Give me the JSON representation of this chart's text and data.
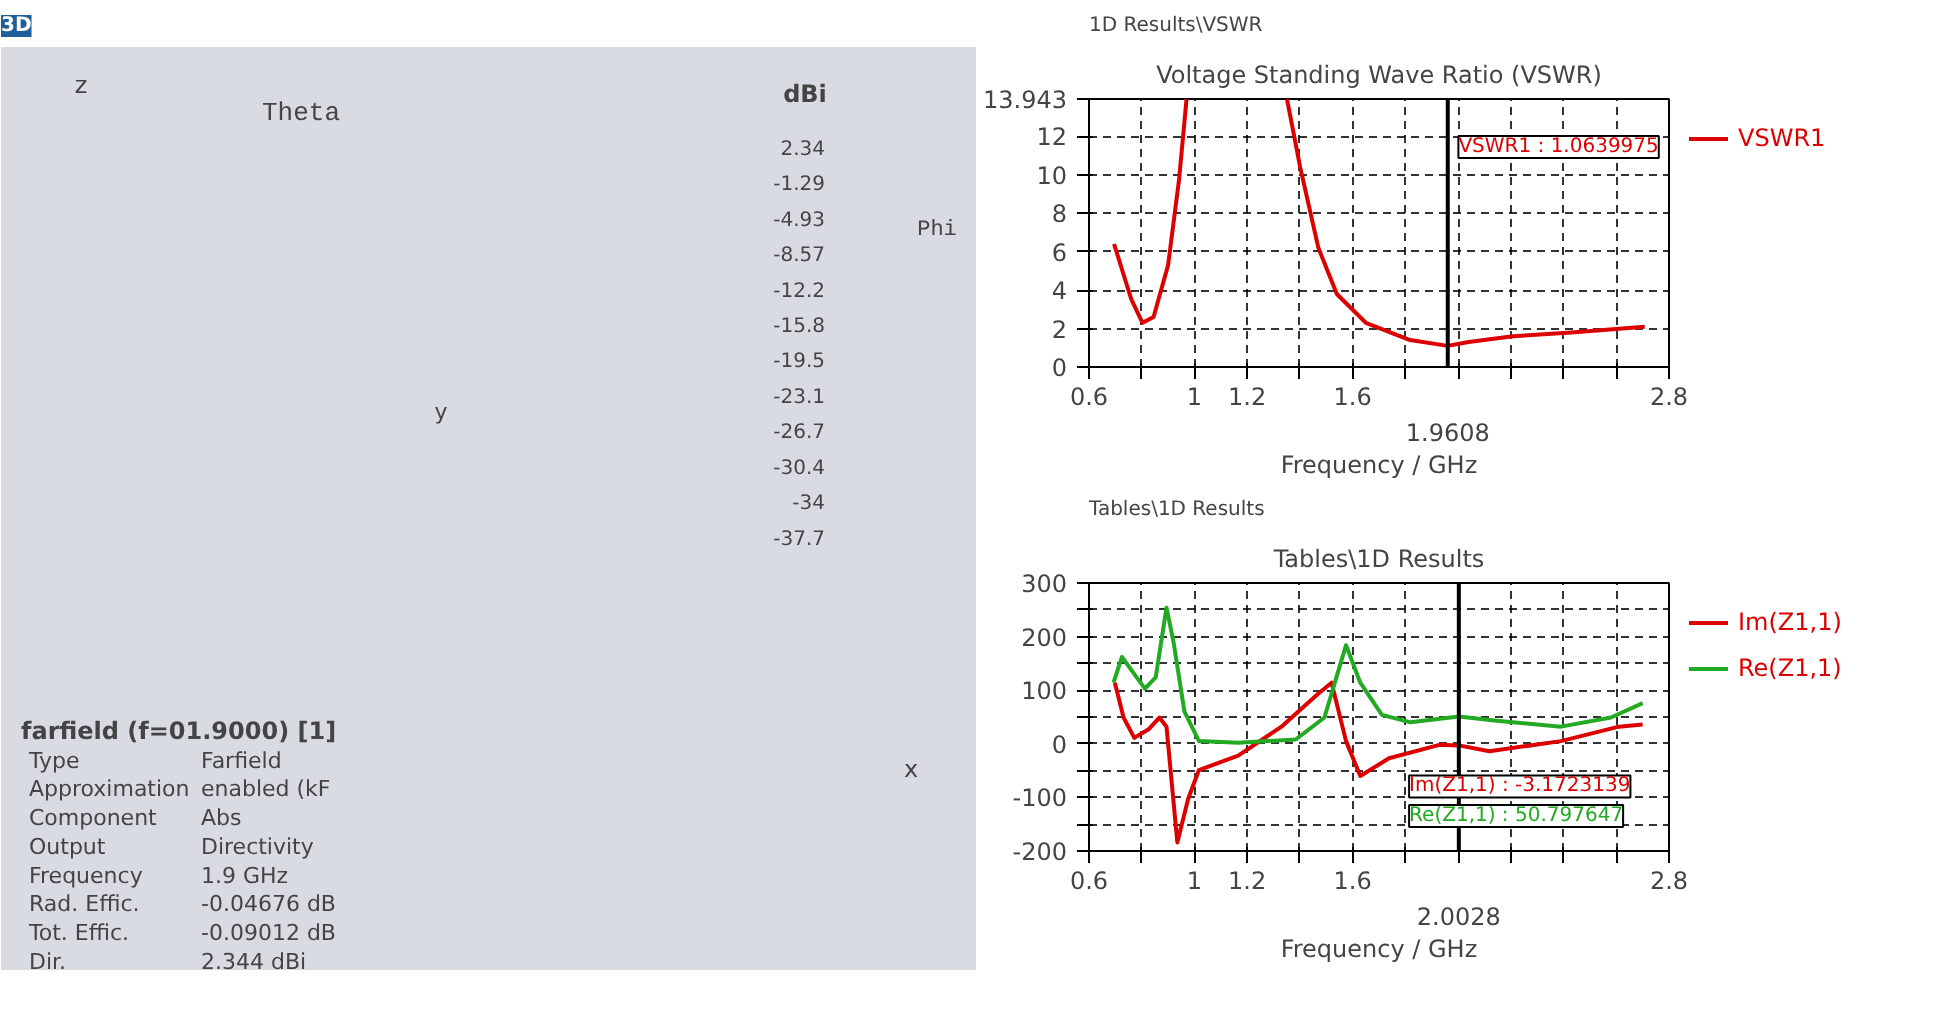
{
  "chart_data": [
    {
      "type": "other",
      "title": "3D",
      "clabel": "dBi",
      "annotations": [
        "Theta",
        "Phi",
        "z",
        "y",
        "x",
        "2.34",
        "-1.29",
        "-4.93",
        "-8.57",
        "-12.2",
        "-15.8",
        "-19.5",
        "-23.1",
        "-26.7",
        "-30.4",
        "-34",
        "-37.7",
        "farfield (f=01.9000) [1]",
        "Type",
        "Farfield",
        "Approximation",
        "enabled (kF",
        "Component",
        "Abs",
        "Output",
        "Directivity",
        "Frequency",
        "1.9 GHz",
        "Rad. Effic.",
        "-0.04676 dB",
        "Tot. Effic.",
        "-0.09012 dB",
        "Dir.",
        "2.344 dBi"
      ]
    },
    {
      "type": "line",
      "subtitle": "1D Results\\VSWR",
      "title": "Voltage Standing Wave Ratio (VSWR)",
      "xlabel": "Frequency / GHz",
      "xlim": [
        0.6,
        2.8
      ],
      "xticks": [
        0.6,
        {
          "value": 0.8,
          "label": null
        },
        1,
        1.2,
        {
          "value": 1.4,
          "label": null
        },
        1.6,
        {
          "value": 1.8,
          "label": null
        },
        {
          "value": 2,
          "label": null
        },
        {
          "value": 2.2,
          "label": null
        },
        {
          "value": 2.4,
          "label": null
        },
        {
          "value": 2.6,
          "label": null
        },
        2.8
      ],
      "ylim": [
        0,
        13.943
      ],
      "yticks": [
        0,
        2,
        4,
        6,
        8,
        10,
        12,
        13.943
      ],
      "grid": true,
      "legend": "right",
      "marker": "none",
      "line_style": "solid",
      "x": [
        0.695,
        0.761,
        0.803,
        0.845,
        0.9,
        0.942,
        0.97,
        1.2,
        1.351,
        1.401,
        1.47,
        1.54,
        1.65,
        1.818,
        1.9608,
        2.04,
        2.208,
        2.43,
        2.708
      ],
      "series": [
        {
          "name": "VSWR1",
          "color": "#dd0000",
          "values": [
            6.4,
            3.5,
            2.3,
            2.6,
            5.3,
            9.8,
            13.943,
            null,
            13.943,
            10.4,
            6.2,
            3.8,
            2.3,
            1.4,
            1.1,
            1.3,
            1.6,
            1.8,
            2.1
          ]
        }
      ],
      "ref_lines": [
        {
          "axis": "x",
          "value": 1.9608,
          "label": "1.9608",
          "color": "#000000"
        }
      ],
      "annotations": [
        "VSWR1 : 1.0639975"
      ]
    },
    {
      "type": "line",
      "subtitle": "Tables\\1D Results",
      "title": "Tables\\1D Results",
      "xlabel": "Frequency / GHz",
      "xlim": [
        0.6,
        2.8
      ],
      "xticks": [
        0.6,
        {
          "value": 0.8,
          "label": null
        },
        1,
        1.2,
        {
          "value": 1.4,
          "label": null
        },
        1.6,
        {
          "value": 1.8,
          "label": null
        },
        {
          "value": 2,
          "label": null
        },
        {
          "value": 2.2,
          "label": null
        },
        {
          "value": 2.4,
          "label": null
        },
        {
          "value": 2.6,
          "label": null
        },
        2.8
      ],
      "ylim": [
        -200,
        300
      ],
      "yticks": [
        -200,
        {
          "value": -150,
          "label": null
        },
        -100,
        {
          "value": -50,
          "label": null
        },
        0,
        {
          "value": 50,
          "label": null
        },
        100,
        {
          "value": 150,
          "label": null
        },
        200,
        {
          "value": 250,
          "label": null
        },
        300
      ],
      "grid": true,
      "legend": "top right",
      "marker": "none",
      "line_style": "solid",
      "series": [
        {
          "name": "Im(Z1,1)",
          "color": "#dd0000",
          "x": [
            0.698,
            0.731,
            0.772,
            0.826,
            0.867,
            0.894,
            0.935,
            0.976,
            1.017,
            1.166,
            1.33,
            1.466,
            1.52,
            1.575,
            1.629,
            1.738,
            1.929,
            2.0028,
            2.119,
            2.39,
            2.61,
            2.7
          ],
          "values": [
            114,
            49,
            11,
            27,
            49,
            32,
            -184,
            -103,
            -49,
            -22,
            32,
            92,
            114,
            5,
            -60,
            -27,
            -2,
            -3,
            -14,
            5,
            32,
            36
          ]
        },
        {
          "name": "Re(Z1,1)",
          "color": "#22aa22",
          "x": [
            0.693,
            0.725,
            0.772,
            0.812,
            0.853,
            0.894,
            0.921,
            0.962,
            1.017,
            1.166,
            1.384,
            1.493,
            1.575,
            1.629,
            1.711,
            1.82,
            2.0028,
            2.146,
            2.39,
            2.58,
            2.7
          ],
          "values": [
            114,
            162,
            130,
            103,
            124,
            254,
            189,
            60,
            5,
            2,
            8,
            49,
            184,
            114,
            54,
            40,
            51,
            43,
            32,
            49,
            76
          ]
        }
      ],
      "ref_lines": [
        {
          "axis": "x",
          "value": 2.0028,
          "label": "2.0028",
          "color": "#000000"
        }
      ],
      "annotations": [
        "Im(Z1,1) : -3.1723139",
        "Re(Z1,1) : 50.797647"
      ]
    }
  ]
}
